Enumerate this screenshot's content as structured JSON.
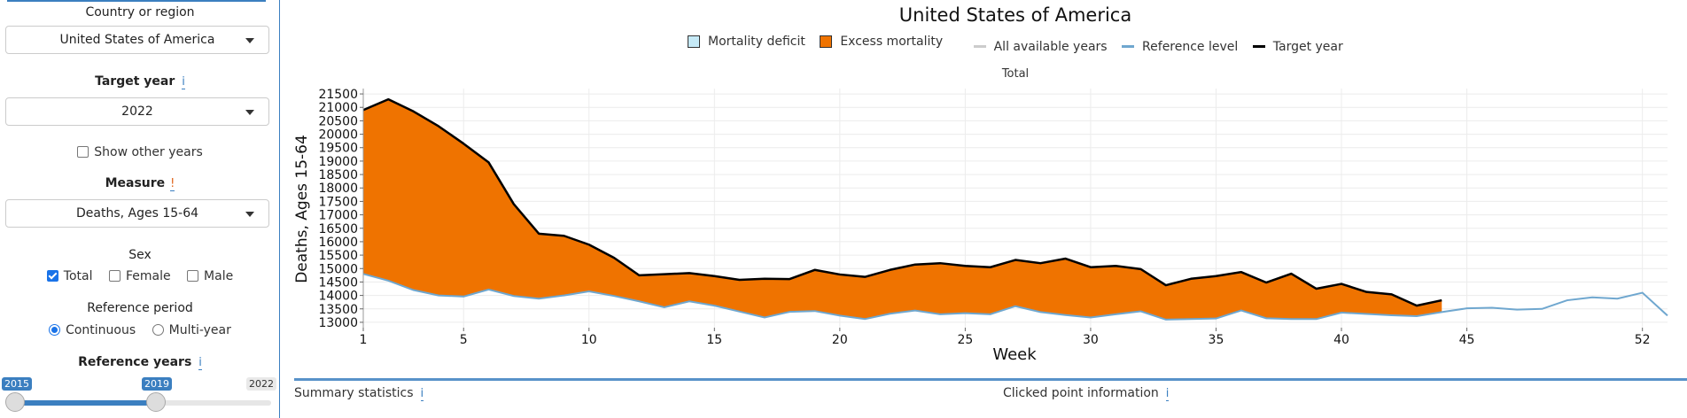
{
  "sidebar": {
    "country_label": "Country or region",
    "country_value": "United States of America",
    "target_year_label": "Target year",
    "target_year_info": "i",
    "target_year_value": "2022",
    "show_other_years": "Show other years",
    "measure_label": "Measure",
    "measure_warn": "!",
    "measure_value": "Deaths, Ages 15-64",
    "sex_label": "Sex",
    "sex_options": [
      "Total",
      "Female",
      "Male"
    ],
    "sex_checked": [
      true,
      false,
      false
    ],
    "reference_period_label": "Reference period",
    "reference_period_options": [
      "Continuous",
      "Multi-year"
    ],
    "reference_period_selected": "Continuous",
    "reference_years_label": "Reference years",
    "reference_years_info": "i",
    "slider_min": "2015",
    "slider_from": "2015",
    "slider_to": "2019",
    "slider_max": "2022",
    "slider_fraction": [
      0.0,
      0.5714
    ]
  },
  "header": {
    "title": "United States of America",
    "subtitle": "Total"
  },
  "legend": {
    "items": [
      {
        "label": "Mortality deficit",
        "kind": "fill",
        "color": "#c6eaf7"
      },
      {
        "label": "Excess mortality",
        "kind": "fill",
        "color": "#ef7300"
      },
      {
        "label": "All available years",
        "kind": "line",
        "color": "#cccccc"
      },
      {
        "label": "Reference level",
        "kind": "line",
        "color": "#6fa7cf"
      },
      {
        "label": "Target year",
        "kind": "line",
        "color": "#000000"
      }
    ]
  },
  "footer": {
    "summary": "Summary statistics",
    "summary_info": "i",
    "clicked": "Clicked point information",
    "clicked_info": "i"
  },
  "colors": {
    "accent": "#3b7fc0",
    "excess_fill": "#ef7300",
    "reference_line": "#6fa7cf",
    "target_line": "#000000"
  },
  "chart_data": {
    "type": "area",
    "xlabel": "Week",
    "ylabel": "Deaths, Ages 15-64",
    "xlim": [
      1,
      53
    ],
    "ylim": [
      12800,
      21700
    ],
    "xticks": [
      1,
      5,
      10,
      15,
      20,
      25,
      30,
      35,
      40,
      45,
      52
    ],
    "yticks": [
      13000,
      13500,
      14000,
      14500,
      15000,
      15500,
      16000,
      16500,
      17000,
      17500,
      18000,
      18500,
      19000,
      19500,
      20000,
      20500,
      21000,
      21500
    ],
    "grid": true,
    "series": [
      {
        "name": "Target year",
        "x": [
          1,
          2,
          3,
          4,
          5,
          6,
          7,
          8,
          9,
          10,
          11,
          12,
          13,
          14,
          15,
          16,
          17,
          18,
          19,
          20,
          21,
          22,
          23,
          24,
          25,
          26,
          27,
          28,
          29,
          30,
          31,
          32,
          33,
          34,
          35,
          36,
          37,
          38,
          39,
          40,
          41,
          42,
          43,
          44
        ],
        "values": [
          20900,
          21300,
          20850,
          20300,
          19650,
          18950,
          17400,
          16300,
          16220,
          15890,
          15400,
          14750,
          14790,
          14830,
          14720,
          14580,
          14620,
          14610,
          14950,
          14780,
          14690,
          14950,
          15150,
          15200,
          15100,
          15050,
          15320,
          15200,
          15370,
          15050,
          15100,
          14980,
          14380,
          14620,
          14720,
          14870,
          14480,
          14810,
          14250,
          14430,
          14130,
          14040,
          13620,
          13820
        ]
      },
      {
        "name": "Reference level",
        "x": [
          1,
          2,
          3,
          4,
          5,
          6,
          7,
          8,
          9,
          10,
          11,
          12,
          13,
          14,
          15,
          16,
          17,
          18,
          19,
          20,
          21,
          22,
          23,
          24,
          25,
          26,
          27,
          28,
          29,
          30,
          31,
          32,
          33,
          34,
          35,
          36,
          37,
          38,
          39,
          40,
          41,
          42,
          43,
          44,
          45,
          46,
          47,
          48,
          49,
          50,
          51,
          52,
          53
        ],
        "values": [
          14800,
          14550,
          14200,
          14000,
          13960,
          14220,
          13980,
          13880,
          14000,
          14150,
          13980,
          13780,
          13560,
          13780,
          13620,
          13400,
          13180,
          13390,
          13420,
          13250,
          13120,
          13320,
          13440,
          13300,
          13340,
          13300,
          13600,
          13380,
          13270,
          13180,
          13300,
          13410,
          13100,
          13120,
          13140,
          13440,
          13150,
          13120,
          13120,
          13360,
          13310,
          13260,
          13230,
          13380,
          13520,
          13540,
          13470,
          13500,
          13820,
          13930,
          13880,
          14100,
          13250
        ]
      }
    ]
  }
}
